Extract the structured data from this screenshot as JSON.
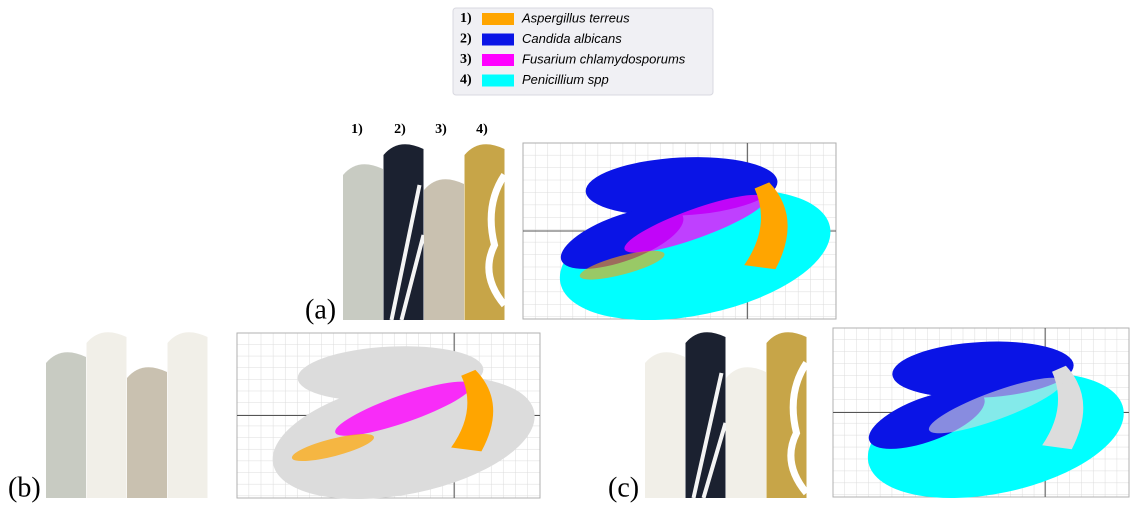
{
  "legend": {
    "items": [
      {
        "number": "1)",
        "name": "Aspergillus terreus",
        "color": "#ffa500"
      },
      {
        "number": "2)",
        "name": "Candida albicans",
        "color": "#0a14e6"
      },
      {
        "number": "3)",
        "name": "Fusarium chlamydosporums",
        "color": "#ff00ff"
      },
      {
        "number": "4)",
        "name": "Penicillium spp",
        "color": "#00ffff"
      }
    ]
  },
  "column_labels": [
    "1)",
    "2)",
    "3)",
    "4)"
  ],
  "panel_labels": [
    "(a)",
    "(b)",
    "(c)"
  ]
}
